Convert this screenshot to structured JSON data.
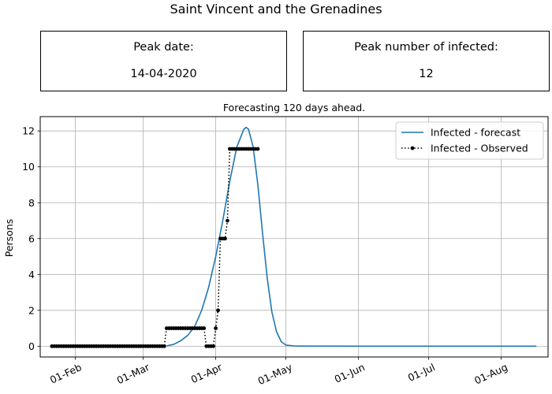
{
  "page_title": "Saint Vincent and the Grenadines",
  "info_boxes": [
    {
      "label": "Peak date:",
      "value": "14-04-2020"
    },
    {
      "label": "Peak number of infected:",
      "value": "12"
    }
  ],
  "chart_data": {
    "type": "line",
    "title": "Forecasting 120 days ahead.",
    "xlabel": "",
    "ylabel": "Persons",
    "xlim": [
      "2020-01-17",
      "2020-08-21"
    ],
    "ylim": [
      -0.6,
      12.8
    ],
    "x_ticks": [
      {
        "date": "2020-02-01",
        "label": "01-Feb"
      },
      {
        "date": "2020-03-01",
        "label": "01-Mar"
      },
      {
        "date": "2020-04-01",
        "label": "01-Apr"
      },
      {
        "date": "2020-05-01",
        "label": "01-May"
      },
      {
        "date": "2020-06-01",
        "label": "01-Jun"
      },
      {
        "date": "2020-07-01",
        "label": "01-Jul"
      },
      {
        "date": "2020-08-01",
        "label": "01-Aug"
      }
    ],
    "y_ticks": [
      0,
      2,
      4,
      6,
      8,
      10,
      12
    ],
    "grid": true,
    "legend_position": "top-right",
    "series": [
      {
        "name": "Infected - forecast",
        "style": "solid",
        "color": "#1f77b4",
        "x_start": "2020-03-11",
        "x_end": "2020-08-16",
        "peak_date": "2020-04-14",
        "peak_value": 12.2,
        "points": [
          [
            "2020-03-11",
            0.02
          ],
          [
            "2020-03-14",
            0.1
          ],
          [
            "2020-03-17",
            0.3
          ],
          [
            "2020-03-20",
            0.6
          ],
          [
            "2020-03-23",
            1.1
          ],
          [
            "2020-03-26",
            2.0
          ],
          [
            "2020-03-29",
            3.3
          ],
          [
            "2020-04-01",
            5.0
          ],
          [
            "2020-04-04",
            7.0
          ],
          [
            "2020-04-07",
            9.2
          ],
          [
            "2020-04-10",
            11.1
          ],
          [
            "2020-04-13",
            12.1
          ],
          [
            "2020-04-14",
            12.2
          ],
          [
            "2020-04-15",
            12.1
          ],
          [
            "2020-04-17",
            11.1
          ],
          [
            "2020-04-19",
            9.0
          ],
          [
            "2020-04-21",
            6.3
          ],
          [
            "2020-04-23",
            3.8
          ],
          [
            "2020-04-25",
            1.9
          ],
          [
            "2020-04-27",
            0.8
          ],
          [
            "2020-04-29",
            0.25
          ],
          [
            "2020-05-01",
            0.06
          ],
          [
            "2020-05-05",
            0.01
          ],
          [
            "2020-06-01",
            0.0
          ],
          [
            "2020-08-16",
            0.0
          ]
        ]
      },
      {
        "name": "Infected - Observed",
        "style": "dotted-marker",
        "color": "#000000",
        "segments": [
          {
            "from": "2020-01-22",
            "to": "2020-03-10",
            "value": 0
          },
          {
            "from": "2020-03-11",
            "to": "2020-03-27",
            "value": 1
          },
          {
            "from": "2020-03-28",
            "to": "2020-03-31",
            "value": 0
          },
          {
            "from": "2020-04-01",
            "to": "2020-04-01",
            "value": 1
          },
          {
            "from": "2020-04-02",
            "to": "2020-04-02",
            "value": 2
          },
          {
            "from": "2020-04-03",
            "to": "2020-04-05",
            "value": 6
          },
          {
            "from": "2020-04-06",
            "to": "2020-04-06",
            "value": 7
          },
          {
            "from": "2020-04-07",
            "to": "2020-04-19",
            "value": 11
          }
        ]
      }
    ]
  }
}
